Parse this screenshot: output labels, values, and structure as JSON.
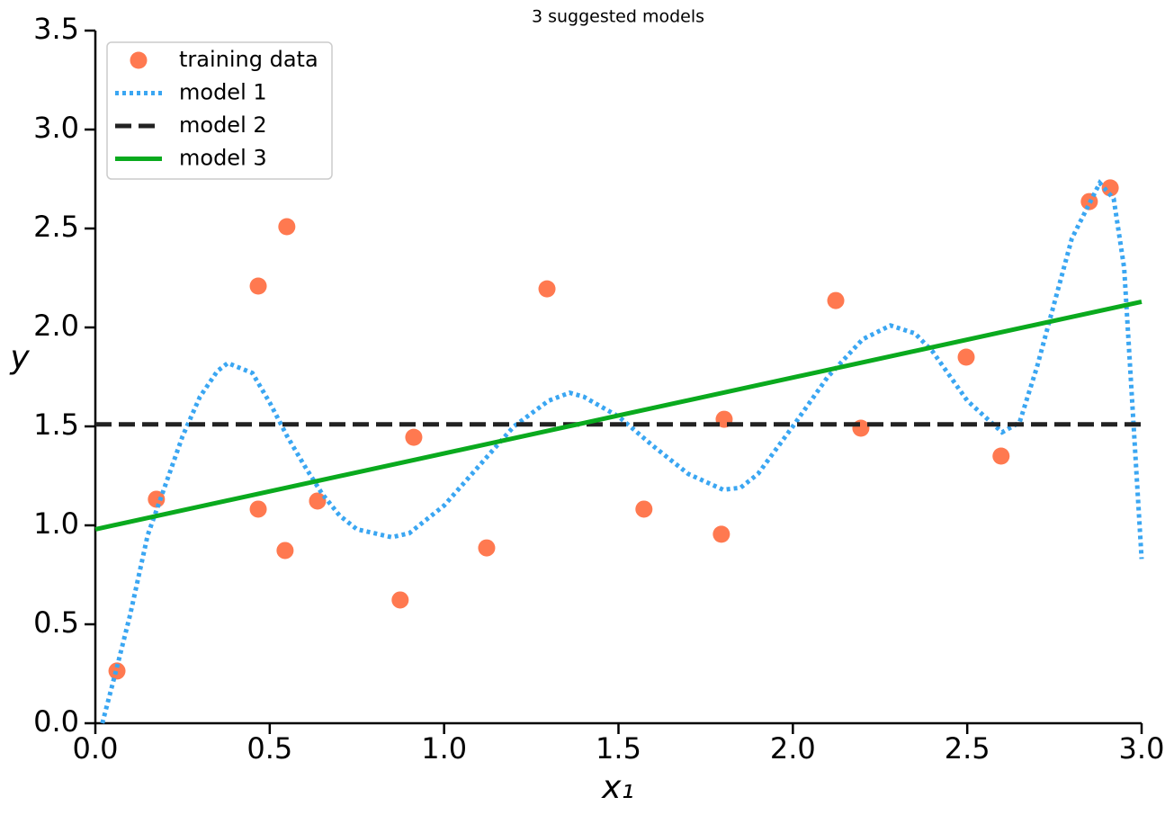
{
  "chart_data": {
    "type": "line",
    "title": "3 suggested models",
    "x_label": "x₁",
    "y_label": "y",
    "xlim": [
      0,
      3
    ],
    "ylim": [
      0,
      3.5
    ],
    "xticks": [
      {
        "value": 0,
        "label": "0.0"
      },
      0.5,
      {
        "value": 1,
        "label": "1.0"
      },
      1.5,
      {
        "value": 2,
        "label": "2.0"
      },
      2.5,
      {
        "value": 3,
        "label": "3.0"
      }
    ],
    "yticks": [
      {
        "value": 0,
        "label": "0.0"
      },
      0.5,
      {
        "value": 1,
        "label": "1.0"
      },
      1.5,
      {
        "value": 2,
        "label": "2.0"
      },
      2.5,
      {
        "value": 3,
        "label": "3.0"
      },
      3.5
    ],
    "legend": "upper left",
    "series": [
      {
        "name": "training data",
        "type": "scatter",
        "color": "#ff6a3d",
        "x": [
          0.062,
          0.175,
          0.467,
          0.467,
          0.549,
          0.544,
          0.637,
          0.874,
          0.913,
          1.122,
          1.295,
          1.573,
          1.795,
          1.803,
          2.123,
          2.195,
          2.497,
          2.597,
          2.85,
          2.91
        ],
        "values": [
          0.264,
          1.132,
          2.209,
          1.082,
          2.509,
          0.873,
          1.123,
          0.623,
          1.445,
          0.886,
          2.195,
          1.082,
          0.955,
          1.536,
          2.136,
          1.491,
          1.85,
          1.35,
          2.636,
          2.705
        ]
      },
      {
        "name": "model 1",
        "type": "line",
        "style": "dotted",
        "color": "#3aa6f2",
        "x": [
          0.02,
          0.06,
          0.1,
          0.15,
          0.2,
          0.25,
          0.3,
          0.35,
          0.38,
          0.45,
          0.5,
          0.55,
          0.6,
          0.65,
          0.7,
          0.75,
          0.85,
          0.9,
          1.0,
          1.1,
          1.2,
          1.3,
          1.36,
          1.4,
          1.5,
          1.6,
          1.7,
          1.8,
          1.85,
          1.9,
          2.0,
          2.1,
          2.2,
          2.28,
          2.35,
          2.4,
          2.5,
          2.6,
          2.65,
          2.7,
          2.8,
          2.88,
          2.92,
          2.95,
          3.0
        ],
        "values": [
          0,
          0.27,
          0.55,
          0.95,
          1.2,
          1.45,
          1.65,
          1.78,
          1.82,
          1.77,
          1.62,
          1.45,
          1.3,
          1.16,
          1.05,
          0.98,
          0.94,
          0.96,
          1.1,
          1.3,
          1.5,
          1.63,
          1.67,
          1.65,
          1.55,
          1.4,
          1.26,
          1.18,
          1.19,
          1.26,
          1.5,
          1.75,
          1.94,
          2.01,
          1.97,
          1.88,
          1.63,
          1.47,
          1.52,
          1.8,
          2.45,
          2.73,
          2.65,
          2.3,
          0.83
        ]
      },
      {
        "name": "model 2",
        "type": "line",
        "style": "dashed",
        "color": "#222222",
        "x": [
          0,
          3
        ],
        "values": [
          1.51,
          1.51
        ]
      },
      {
        "name": "model 3",
        "type": "line",
        "style": "solid",
        "color": "#0aaa1e",
        "x": [
          0,
          3
        ],
        "values": [
          0.98,
          2.13
        ]
      }
    ]
  }
}
